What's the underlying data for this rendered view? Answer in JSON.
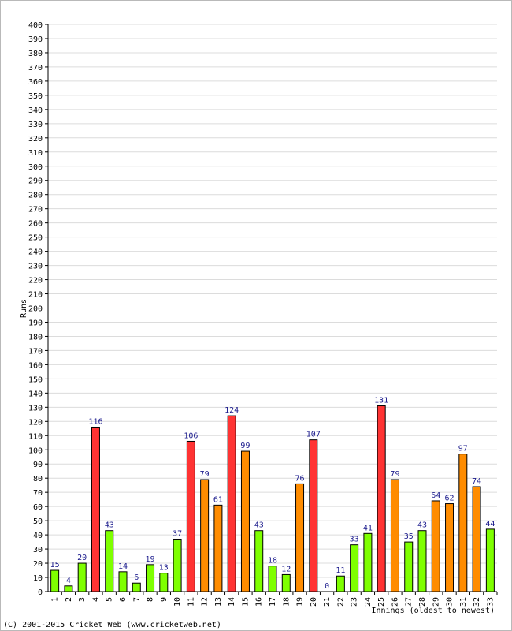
{
  "chart_data": {
    "type": "bar",
    "ylabel": "Runs",
    "xlabel": "Innings (oldest to newest)",
    "ylim": [
      0,
      400
    ],
    "y_tick_step": 10,
    "grid": true,
    "categories": [
      "1",
      "2",
      "3",
      "4",
      "5",
      "6",
      "7",
      "8",
      "9",
      "10",
      "11",
      "12",
      "13",
      "14",
      "15",
      "16",
      "17",
      "18",
      "19",
      "20",
      "21",
      "22",
      "23",
      "24",
      "25",
      "26",
      "27",
      "28",
      "29",
      "30",
      "31",
      "32",
      "33"
    ],
    "values": [
      15,
      4,
      20,
      116,
      43,
      14,
      6,
      19,
      13,
      37,
      106,
      79,
      61,
      124,
      99,
      43,
      18,
      12,
      76,
      107,
      0,
      11,
      33,
      41,
      131,
      79,
      35,
      43,
      64,
      62,
      97,
      74,
      44
    ],
    "colors": {
      "under_50": "#7fff00",
      "50_to_99": "#ff8c00",
      "100_plus": "#ff3333"
    }
  },
  "footer": {
    "copyright": "(C) 2001-2015 Cricket Web (www.cricketweb.net)"
  }
}
